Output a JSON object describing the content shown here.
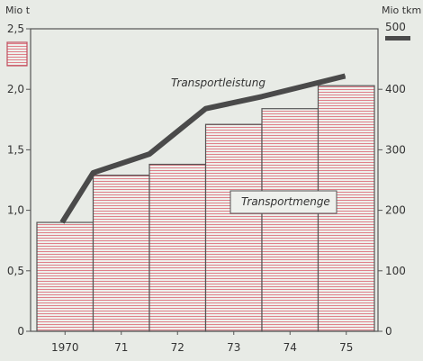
{
  "chart_data": {
    "type": "bar",
    "categories": [
      "1970",
      "71",
      "72",
      "73",
      "74",
      "75"
    ],
    "left_axis": {
      "unit": "Mio t",
      "ticks": [
        "0",
        "0,5",
        "1,0",
        "1,5",
        "2,0",
        "2,5"
      ],
      "ylim": [
        0,
        2.5
      ]
    },
    "right_axis": {
      "unit": "Mio tkm",
      "ticks": [
        "0",
        "100",
        "200",
        "300",
        "400",
        "500"
      ],
      "ylim": [
        0,
        500
      ]
    },
    "series": [
      {
        "name": "Transportmenge",
        "type": "bar",
        "axis": "left",
        "values": [
          0.9,
          1.29,
          1.38,
          1.71,
          1.84,
          2.03
        ]
      },
      {
        "name": "Transportleistung",
        "type": "line",
        "axis": "right",
        "values": [
          180,
          262,
          293,
          368,
          388,
          422
        ]
      }
    ],
    "legend_left_symbol": "red hatched box",
    "legend_right_symbol": "dark thick line",
    "grid": false,
    "colors": {
      "bar_line": "#e0808a",
      "bar_border": "#555555",
      "line": "#4a4a4a",
      "background": "#e8ebe6"
    }
  }
}
